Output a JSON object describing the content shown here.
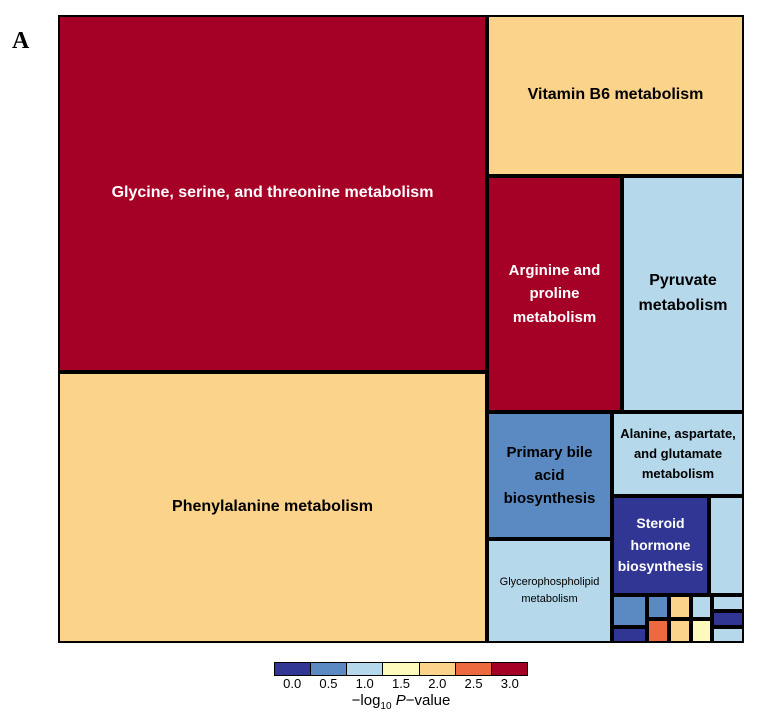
{
  "panel_label": "A",
  "chart_data": {
    "type": "treemap",
    "color_scale": {
      "title_prefix": "−log",
      "title_sub": "10",
      "title_italic": "P",
      "title_suffix": "−value",
      "tick_labels": [
        "0.0",
        "0.5",
        "1.0",
        "1.5",
        "2.0",
        "2.5",
        "3.0"
      ],
      "colors": [
        "#313695",
        "#5b8ac2",
        "#b5d8ea",
        "#fdfabc",
        "#fbd38a",
        "#ed6a41",
        "#a50026"
      ]
    },
    "tiles": [
      {
        "label": "Glycine, serine, and threonine metabolism",
        "neg_log10_p": 3.0
      },
      {
        "label": "Phenylalanine metabolism",
        "neg_log10_p": 2.0
      },
      {
        "label": "Vitamin B6 metabolism",
        "neg_log10_p": 2.0
      },
      {
        "label": "Arginine and proline metabolism",
        "neg_log10_p": 3.0
      },
      {
        "label": "Pyruvate metabolism",
        "neg_log10_p": 1.0
      },
      {
        "label": "Primary bile acid biosynthesis",
        "neg_log10_p": 0.5
      },
      {
        "label": "Alanine, aspartate, and glutamate metabolism",
        "neg_log10_p": 1.0
      },
      {
        "label": "Glycerophospholipid metabolism",
        "neg_log10_p": 1.0
      },
      {
        "label": "Steroid hormone biosynthesis",
        "neg_log10_p": 0.3
      },
      {
        "label": "",
        "neg_log10_p": 1.0
      },
      {
        "label": "",
        "neg_log10_p": 0.5
      },
      {
        "label": "",
        "neg_log10_p": 0.4
      },
      {
        "label": "",
        "neg_log10_p": 0.5
      },
      {
        "label": "",
        "neg_log10_p": 2.0
      },
      {
        "label": "",
        "neg_log10_p": 1.0
      },
      {
        "label": "",
        "neg_log10_p": 1.0
      },
      {
        "label": "",
        "neg_log10_p": 0.4
      },
      {
        "label": "",
        "neg_log10_p": 2.5
      },
      {
        "label": "",
        "neg_log10_p": 2.0
      },
      {
        "label": "",
        "neg_log10_p": 1.5
      },
      {
        "label": "",
        "neg_log10_p": 1.0
      }
    ]
  }
}
